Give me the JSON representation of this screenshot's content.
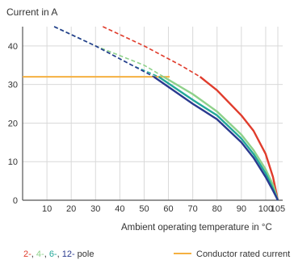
{
  "chart_data": {
    "type": "line",
    "ylabel": "Current in A",
    "xlabel": "Ambient operating temperature in °C",
    "xlim": [
      0,
      107
    ],
    "ylim": [
      0,
      45
    ],
    "xticks": [
      10,
      20,
      30,
      40,
      50,
      60,
      70,
      80,
      90,
      100,
      105
    ],
    "yticks": [
      0,
      10,
      20,
      30,
      40
    ],
    "grid": true,
    "conductor_rated_current": {
      "label": "Conductor rated current",
      "value": 32,
      "color": "#f5b041"
    },
    "series": [
      {
        "name": "2-pole",
        "color": "#e03c2c",
        "points": [
          [
            33,
            45
          ],
          [
            50,
            40
          ],
          [
            65,
            35
          ],
          [
            73,
            32
          ],
          [
            80,
            28.5
          ],
          [
            90,
            22
          ],
          [
            95,
            18
          ],
          [
            100,
            12
          ],
          [
            103,
            6
          ],
          [
            105,
            0
          ]
        ]
      },
      {
        "name": "4-pole",
        "color": "#8ed18a",
        "points": [
          [
            13,
            45
          ],
          [
            30,
            40
          ],
          [
            50,
            35
          ],
          [
            58,
            32
          ],
          [
            70,
            27.5
          ],
          [
            80,
            23
          ],
          [
            90,
            17
          ],
          [
            95,
            13
          ],
          [
            100,
            8
          ],
          [
            103,
            4
          ],
          [
            105,
            0
          ]
        ]
      },
      {
        "name": "6-pole",
        "color": "#22a899",
        "points": [
          [
            13,
            45
          ],
          [
            30,
            40
          ],
          [
            45,
            35
          ],
          [
            56,
            32
          ],
          [
            70,
            26
          ],
          [
            80,
            22
          ],
          [
            90,
            16
          ],
          [
            95,
            12
          ],
          [
            100,
            7
          ],
          [
            103,
            3
          ],
          [
            105,
            0
          ]
        ]
      },
      {
        "name": "12-pole",
        "color": "#2a3a8f",
        "points": [
          [
            13,
            45
          ],
          [
            30,
            40
          ],
          [
            45,
            35
          ],
          [
            54,
            32
          ],
          [
            70,
            25
          ],
          [
            80,
            21
          ],
          [
            90,
            15
          ],
          [
            95,
            11
          ],
          [
            100,
            6
          ],
          [
            103,
            2.5
          ],
          [
            105,
            0
          ]
        ]
      }
    ],
    "legend": {
      "pole_parts": [
        {
          "text": "2-",
          "color": "#e03c2c"
        },
        {
          "text": ", ",
          "color": "#333333"
        },
        {
          "text": "4-",
          "color": "#8ed18a"
        },
        {
          "text": ", ",
          "color": "#333333"
        },
        {
          "text": "6-",
          "color": "#22a899"
        },
        {
          "text": ", ",
          "color": "#333333"
        },
        {
          "text": "12-",
          "color": "#2a3a8f"
        },
        {
          "text": " pole",
          "color": "#333333"
        }
      ],
      "rated_label": "Conductor rated current"
    }
  }
}
